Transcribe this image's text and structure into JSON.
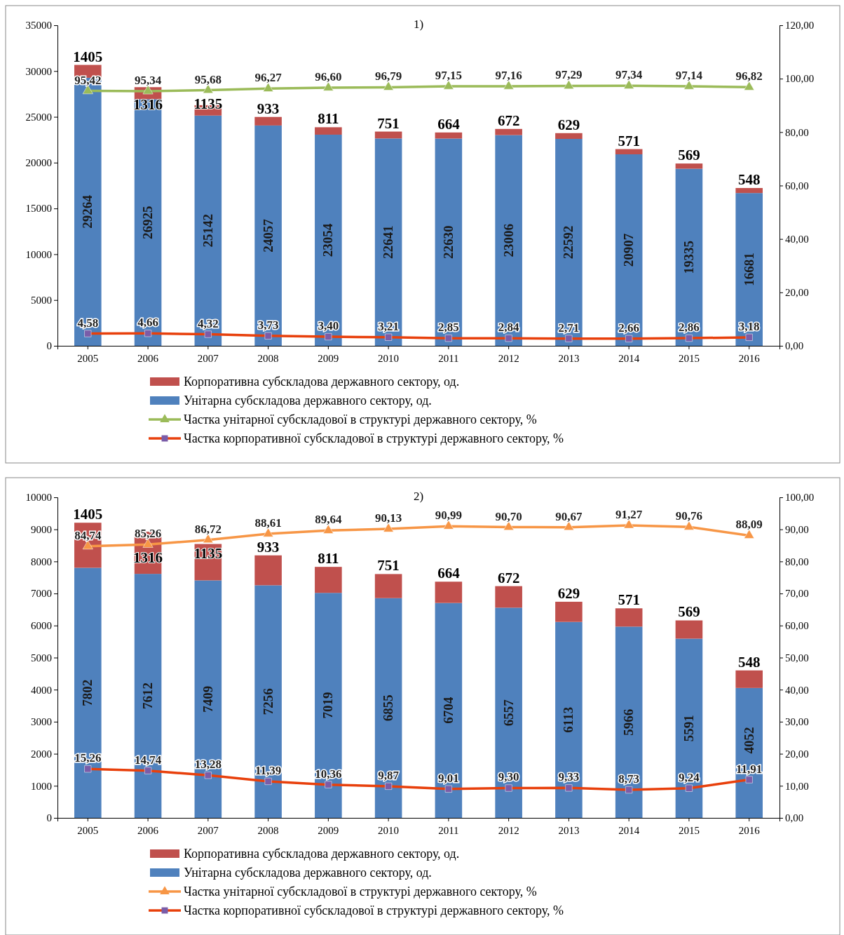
{
  "chart_data": [
    {
      "type": "bar",
      "title": "1)",
      "stacked": true,
      "data_labels": true,
      "legend": "bottom",
      "categories": [
        "2005",
        "2006",
        "2007",
        "2008",
        "2009",
        "2010",
        "2011",
        "2012",
        "2013",
        "2014",
        "2015",
        "2016"
      ],
      "ylim": [
        0,
        35000
      ],
      "yticks": [
        0,
        5000,
        10000,
        15000,
        20000,
        25000,
        30000,
        35000
      ],
      "y2lim": [
        0,
        120
      ],
      "y2ticks": [
        {
          "value": 0,
          "label": "0,00"
        },
        {
          "value": 20,
          "label": "20,00"
        },
        {
          "value": 40,
          "label": "40,00"
        },
        {
          "value": 60,
          "label": "60,00"
        },
        {
          "value": 80,
          "label": "80,00"
        },
        {
          "value": 100,
          "label": "100,00"
        },
        {
          "value": 120,
          "label": "120,00"
        }
      ],
      "series": [
        {
          "name": "Унітарна субскладова державного сектору, од.",
          "color": "#4f81bd",
          "values": [
            29264,
            26925,
            25142,
            24057,
            23054,
            22641,
            22630,
            23006,
            22592,
            20907,
            19335,
            16681
          ]
        },
        {
          "name": "Корпоративна субскладова державного сектору, од.",
          "color": "#c0504d",
          "values": [
            1405,
            1316,
            1135,
            933,
            811,
            751,
            664,
            672,
            629,
            571,
            569,
            548
          ]
        },
        {
          "name": "Частка унітарної субскладової в структурі державного сектору, %",
          "type": "line",
          "axis": "y2",
          "marker": "triangle",
          "color": "#9bbb59",
          "values": [
            95.42,
            95.34,
            95.68,
            96.27,
            96.6,
            96.79,
            97.15,
            97.16,
            97.29,
            97.34,
            97.14,
            96.82
          ],
          "value_labels": [
            "95,42",
            "95,34",
            "95,68",
            "96,27",
            "96,60",
            "96,79",
            "97,15",
            "97,16",
            "97,29",
            "97,34",
            "97,14",
            "96,82"
          ]
        },
        {
          "name": "Частка корпоративної субскладової в структурі державного сектору, %",
          "type": "line",
          "axis": "y2",
          "marker": "square",
          "color": "#e8400c",
          "values": [
            4.58,
            4.66,
            4.32,
            3.73,
            3.4,
            3.21,
            2.85,
            2.84,
            2.71,
            2.66,
            2.86,
            3.18
          ],
          "value_labels": [
            "4,58",
            "4,66",
            "4,32",
            "3,73",
            "3,40",
            "3,21",
            "2,85",
            "2,84",
            "2,71",
            "2,66",
            "2,86",
            "3,18"
          ]
        }
      ]
    },
    {
      "type": "bar",
      "title": "2)",
      "stacked": true,
      "data_labels": true,
      "legend": "bottom",
      "categories": [
        "2005",
        "2006",
        "2007",
        "2008",
        "2009",
        "2010",
        "2011",
        "2012",
        "2013",
        "2014",
        "2015",
        "2016"
      ],
      "ylim": [
        0,
        10000
      ],
      "yticks": [
        0,
        1000,
        2000,
        3000,
        4000,
        5000,
        6000,
        7000,
        8000,
        9000,
        10000
      ],
      "y2lim": [
        0,
        100
      ],
      "y2ticks": [
        {
          "value": 0,
          "label": "0,00"
        },
        {
          "value": 10,
          "label": "10,00"
        },
        {
          "value": 20,
          "label": "20,00"
        },
        {
          "value": 30,
          "label": "30,00"
        },
        {
          "value": 40,
          "label": "40,00"
        },
        {
          "value": 50,
          "label": "50,00"
        },
        {
          "value": 60,
          "label": "60,00"
        },
        {
          "value": 70,
          "label": "70,00"
        },
        {
          "value": 80,
          "label": "80,00"
        },
        {
          "value": 90,
          "label": "90,00"
        },
        {
          "value": 100,
          "label": "100,00"
        }
      ],
      "series": [
        {
          "name": "Унітарна субскладова державного сектору, од.",
          "color": "#4f81bd",
          "values": [
            7802,
            7612,
            7409,
            7256,
            7019,
            6855,
            6704,
            6557,
            6113,
            5966,
            5591,
            4052
          ]
        },
        {
          "name": "Корпоративна субскладова державного сектору, од.",
          "color": "#c0504d",
          "values": [
            1405,
            1316,
            1135,
            933,
            811,
            751,
            664,
            672,
            629,
            571,
            569,
            548
          ]
        },
        {
          "name": "Частка  унітарної субскладової в структурі  державного сектору, %",
          "type": "line",
          "axis": "y2",
          "marker": "triangle",
          "color": "#f79646",
          "values": [
            84.74,
            85.26,
            86.72,
            88.61,
            89.64,
            90.13,
            90.99,
            90.7,
            90.67,
            91.27,
            90.76,
            88.09
          ],
          "value_labels": [
            "84,74",
            "85,26",
            "86,72",
            "88,61",
            "89,64",
            "90,13",
            "90,99",
            "90,70",
            "90,67",
            "91,27",
            "90,76",
            "88,09"
          ]
        },
        {
          "name": "Частка корпоративної субскладової в структурі  державного сектору, %",
          "type": "line",
          "axis": "y2",
          "marker": "square",
          "color": "#e8400c",
          "values": [
            15.26,
            14.74,
            13.28,
            11.39,
            10.36,
            9.87,
            9.01,
            9.3,
            9.33,
            8.73,
            9.24,
            11.91
          ],
          "value_labels": [
            "15,26",
            "14,74",
            "13,28",
            "11,39",
            "10,36",
            "9,87",
            "9,01",
            "9,30",
            "9,33",
            "8,73",
            "9,24",
            "11,91"
          ]
        }
      ]
    }
  ]
}
